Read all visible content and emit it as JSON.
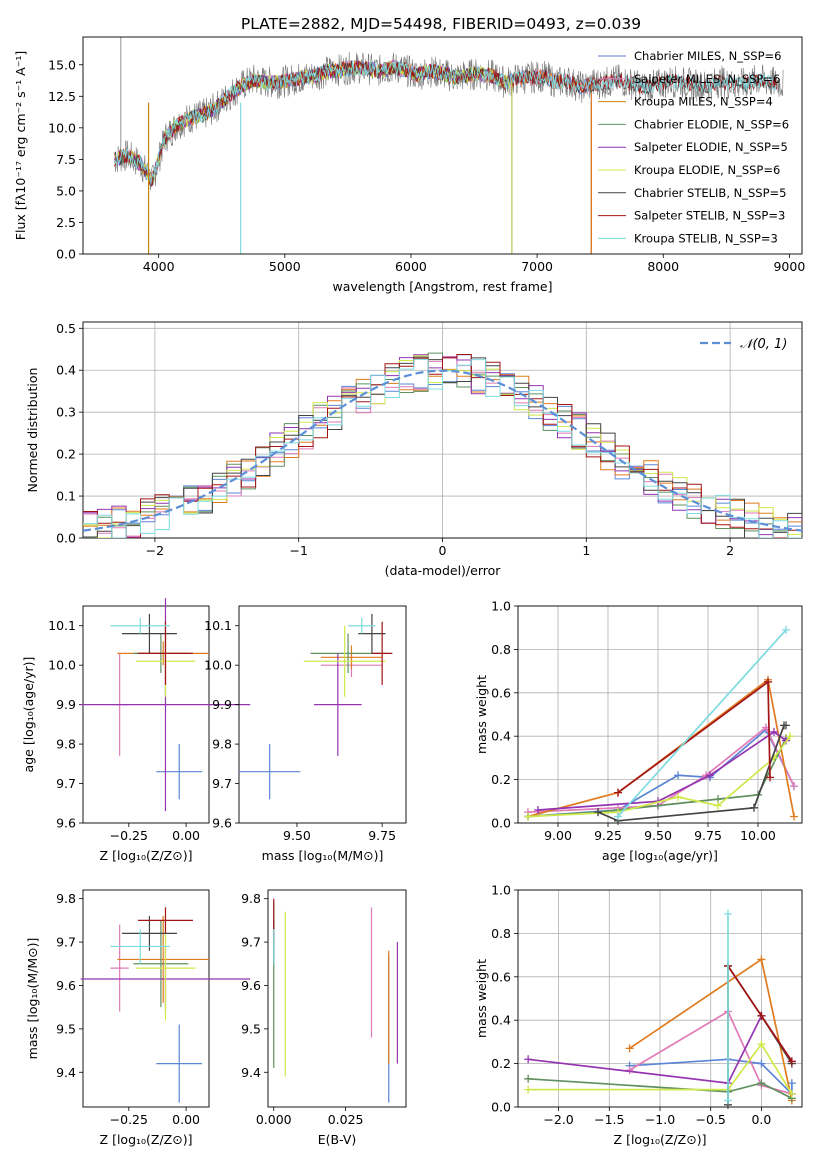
{
  "figure": {
    "title": "PLATE=2882, MJD=54498, FIBERID=0493, z=0.039"
  },
  "colors": [
    "#6a8fd6",
    "#e28ab9",
    "#c8860b",
    "#5f9e5f",
    "#9a3fb8",
    "#d7e14a",
    "#444444",
    "#a31515",
    "#7fdbe0"
  ],
  "panel_colors": {
    "tan_ciel": "#5b8fd8",
    "gris": "#b0b0b0",
    "normal_curve": "#5b8fd8",
    "ssp_lines": [
      "#5b86d6",
      "#e07ab8",
      "#e07b1f",
      "#5f8f5f",
      "#9434b0",
      "#cfe84a",
      "#444444",
      "#a31515",
      "#7fdbe0"
    ]
  },
  "chart_data": [
    {
      "id": "spectrum",
      "type": "line",
      "title": "PLATE=2882, MJD=54498, FIBERID=0493, z=0.039",
      "xlabel": "wavelength [Angstrom, rest frame]",
      "ylabel": "Flux [fλ10⁻¹⁷ erg cm⁻² s⁻¹ A⁻¹]",
      "xlim": [
        3400,
        9100
      ],
      "ylim": [
        0,
        17.2
      ],
      "xticks": [
        4000,
        5000,
        6000,
        7000,
        8000,
        9000
      ],
      "yticks": [
        0.0,
        2.5,
        5.0,
        7.5,
        10.0,
        12.5,
        15.0
      ],
      "ytick_labels": [
        "0.0",
        "2.5",
        "5.0",
        "7.5",
        "10.0",
        "12.5",
        "15.0"
      ],
      "legend": "top-right",
      "legend_entries": [
        "Chabrier MILES, N_SSP=6",
        "Salpeter MILES, N_SSP=6",
        "Kroupa MILES, N_SSP=4",
        "Chabrier ELODIE, N_SSP=6",
        "Salpeter ELODIE, N_SSP=5",
        "Kroupa ELODIE, N_SSP=6",
        "Chabrier STELIB, N_SSP=5",
        "Salpeter STELIB, N_SSP=3",
        "Kroupa STELIB, N_SSP=3"
      ],
      "legend_colors": [
        "#5b86d6",
        "#e07ab8",
        "#c8860b",
        "#5f8f5f",
        "#9434b0",
        "#cfe84a",
        "#444444",
        "#a31515",
        "#7fdbe0"
      ],
      "continuum": {
        "x": [
          3650,
          3750,
          3850,
          3950,
          4050,
          4150,
          4250,
          4350,
          4450,
          4550,
          4650,
          4750,
          4850,
          4950,
          5050,
          5150,
          5250,
          5350,
          5450,
          5550,
          5650,
          5750,
          5850,
          5950,
          6050,
          6150,
          6250,
          6350,
          6450,
          6550,
          6650,
          6750,
          6850,
          6950,
          7050,
          7150,
          7250,
          7350,
          7450,
          7550,
          7650,
          7750,
          7850,
          7950,
          8050,
          8150,
          8250,
          8350,
          8450,
          8550,
          8650,
          8750,
          8850,
          8950
        ],
        "y": [
          7.5,
          7.8,
          7.2,
          5.8,
          9.2,
          10.3,
          10.8,
          11.0,
          11.6,
          12.5,
          13.3,
          13.8,
          13.6,
          13.6,
          13.8,
          14.0,
          14.2,
          14.5,
          14.6,
          14.8,
          14.7,
          14.5,
          14.8,
          14.6,
          14.2,
          14.5,
          14.3,
          14.0,
          14.2,
          14.3,
          14.1,
          13.6,
          13.9,
          14.0,
          14.1,
          13.6,
          13.7,
          13.2,
          13.5,
          13.6,
          13.8,
          13.5,
          13.2,
          13.4,
          13.7,
          13.6,
          13.4,
          13.3,
          13.7,
          13.4,
          13.5,
          13.8,
          13.6,
          13.5
        ]
      },
      "series_cutoffs": [
        {
          "series": "Chabrier MILES, N_SSP=6",
          "end": 7430
        },
        {
          "series": "Salpeter MILES, N_SSP=6",
          "end": 7430
        },
        {
          "series": "Kroupa MILES, N_SSP=4",
          "end": 7430
        },
        {
          "series": "Chabrier ELODIE, N_SSP=6",
          "end": 6800
        },
        {
          "series": "Salpeter ELODIE, N_SSP=5",
          "end": 6800
        },
        {
          "series": "Kroupa ELODIE, N_SSP=6",
          "end": 6800
        },
        {
          "series": "Chabrier STELIB, N_SSP=5",
          "end": 8900
        },
        {
          "series": "Salpeter STELIB, N_SSP=3",
          "end": 8900
        },
        {
          "series": "Kroupa STELIB, N_SSP=3",
          "end": 8900
        }
      ]
    },
    {
      "id": "residual_hist",
      "type": "bar",
      "xlabel": "(data-model)/error",
      "ylabel": "Normed distribution",
      "xlim": [
        -2.5,
        2.5
      ],
      "ylim": [
        0,
        0.515
      ],
      "xticks": [
        -2,
        -1,
        0,
        1,
        2
      ],
      "xtick_labels": [
        "−2",
        "−1",
        "0",
        "1",
        "2"
      ],
      "yticks": [
        0.0,
        0.1,
        0.2,
        0.3,
        0.4,
        0.5
      ],
      "ytick_labels": [
        "0.0",
        "0.1",
        "0.2",
        "0.3",
        "0.4",
        "0.5"
      ],
      "legend": "top-right",
      "legend_entries": [
        "𝒩(0, 1)"
      ],
      "bin_width": 0.1,
      "grid": true,
      "gaussian": {
        "mean": 0,
        "sigma": 1
      }
    },
    {
      "id": "age_vs_Z",
      "type": "scatter",
      "xlabel": "Z [log₁₀(Z/Z⊙)]",
      "ylabel": "age  [log₁₀(age/yr)]",
      "xlim": [
        -0.45,
        0.1
      ],
      "ylim": [
        9.6,
        10.15
      ],
      "xticks": [
        -0.25,
        0.0
      ],
      "xtick_labels": [
        "−0.25",
        "0.00"
      ],
      "yticks": [
        9.6,
        9.7,
        9.8,
        9.9,
        10.0,
        10.1
      ],
      "ytick_labels": [
        "9.6",
        "9.7",
        "9.8",
        "9.9",
        "10.0",
        "10.1"
      ],
      "points": [
        {
          "x": -0.03,
          "y": 9.73,
          "xerr": 0.1,
          "yerr": 0.07
        },
        {
          "x": -0.29,
          "y": 9.9,
          "xerr": 0.04,
          "yerr": 0.13
        },
        {
          "x": -0.1,
          "y": 10.03,
          "xerr": 0.2,
          "yerr": 0.03
        },
        {
          "x": -0.11,
          "y": 10.03,
          "xerr": 0.12,
          "yerr": 0.05
        },
        {
          "x": -0.09,
          "y": 9.9,
          "xerr": 0.37,
          "yerr": 0.27
        },
        {
          "x": -0.09,
          "y": 10.01,
          "xerr": 0.13,
          "yerr": 0.09
        },
        {
          "x": -0.16,
          "y": 10.08,
          "xerr": 0.12,
          "yerr": 0.05
        },
        {
          "x": -0.09,
          "y": 10.03,
          "xerr": 0.12,
          "yerr": 0.08
        },
        {
          "x": -0.2,
          "y": 10.1,
          "xerr": 0.13,
          "yerr": 0.02
        }
      ]
    },
    {
      "id": "age_vs_mass",
      "type": "scatter",
      "xlabel": "mass [log₁₀(M/M⊙)]",
      "ylabel": "",
      "xlim": [
        9.33,
        9.82
      ],
      "ylim": [
        9.6,
        10.15
      ],
      "xticks": [
        9.5,
        9.75
      ],
      "xtick_labels": [
        "9.50",
        "9.75"
      ],
      "yticks": [
        9.6,
        9.7,
        9.8,
        9.9,
        10.0,
        10.1
      ],
      "ytick_labels": [
        "9.6",
        "9.7",
        "9.8",
        "9.9",
        "10.0",
        "10.1"
      ],
      "points": [
        {
          "x": 9.42,
          "y": 9.73,
          "xerr": 0.09,
          "yerr": 0.07
        },
        {
          "x": 9.66,
          "y": 10.0,
          "xerr": 0.09,
          "yerr": 0.03
        },
        {
          "x": 9.66,
          "y": 10.02,
          "xerr": 0.09,
          "yerr": 0.03
        },
        {
          "x": 9.65,
          "y": 10.03,
          "xerr": 0.11,
          "yerr": 0.05
        },
        {
          "x": 9.62,
          "y": 9.9,
          "xerr": 0.07,
          "yerr": 0.13
        },
        {
          "x": 9.64,
          "y": 10.01,
          "xerr": 0.12,
          "yerr": 0.09
        },
        {
          "x": 9.72,
          "y": 10.08,
          "xerr": 0.04,
          "yerr": 0.05
        },
        {
          "x": 9.75,
          "y": 10.03,
          "xerr": 0.03,
          "yerr": 0.08
        },
        {
          "x": 9.69,
          "y": 10.1,
          "xerr": 0.04,
          "yerr": 0.02
        }
      ]
    },
    {
      "id": "weight_vs_age",
      "type": "line",
      "xlabel": "age  [log₁₀(age/yr)]",
      "ylabel": "mass weight",
      "xlim": [
        8.8,
        10.22
      ],
      "ylim": [
        0,
        1.0
      ],
      "xticks": [
        9.0,
        9.25,
        9.5,
        9.75,
        10.0
      ],
      "xtick_labels": [
        "9.00",
        "9.25",
        "9.50",
        "9.75",
        "10.00"
      ],
      "yticks": [
        0.0,
        0.2,
        0.4,
        0.6,
        0.8,
        1.0
      ],
      "ytick_labels": [
        "0.0",
        "0.2",
        "0.4",
        "0.6",
        "0.8",
        "1.0"
      ],
      "grid": true,
      "series": [
        {
          "x": [
            8.85,
            9.3,
            9.6,
            9.76,
            10.04,
            10.18
          ],
          "y": [
            0.03,
            0.06,
            0.22,
            0.21,
            0.43,
            0.17
          ]
        },
        {
          "x": [
            8.85,
            9.3,
            9.5,
            9.74,
            10.04,
            10.18
          ],
          "y": [
            0.05,
            0.07,
            0.08,
            0.22,
            0.44,
            0.17
          ]
        },
        {
          "x": [
            8.85,
            9.3,
            10.05,
            10.18
          ],
          "y": [
            0.03,
            0.14,
            0.66,
            0.03
          ]
        },
        {
          "x": [
            8.85,
            9.2,
            9.5,
            9.8,
            10.0,
            10.14
          ],
          "y": [
            0.03,
            0.05,
            0.08,
            0.11,
            0.13,
            0.39
          ]
        },
        {
          "x": [
            8.9,
            9.5,
            9.76,
            10.08,
            10.14
          ],
          "y": [
            0.06,
            0.1,
            0.22,
            0.42,
            0.38
          ]
        },
        {
          "x": [
            8.85,
            9.3,
            9.6,
            9.8,
            10.08,
            10.16
          ],
          "y": [
            0.03,
            0.05,
            0.12,
            0.08,
            0.3,
            0.4
          ]
        },
        {
          "x": [
            9.2,
            9.3,
            9.98,
            10.13,
            10.14
          ],
          "y": [
            0.05,
            0.01,
            0.07,
            0.45,
            0.45
          ]
        },
        {
          "x": [
            9.3,
            10.05,
            10.06
          ],
          "y": [
            0.14,
            0.65,
            0.21
          ]
        },
        {
          "x": [
            9.3,
            10.14
          ],
          "y": [
            0.03,
            0.89
          ]
        }
      ]
    },
    {
      "id": "mass_vs_Z",
      "type": "scatter",
      "xlabel": "Z [log₁₀(Z/Z⊙)]",
      "ylabel": "mass [log₁₀(M/M⊙)]",
      "xlim": [
        -0.45,
        0.1
      ],
      "ylim": [
        9.32,
        9.82
      ],
      "xticks": [
        -0.25,
        0.0
      ],
      "xtick_labels": [
        "−0.25",
        "0.00"
      ],
      "yticks": [
        9.4,
        9.5,
        9.6,
        9.7,
        9.8
      ],
      "ytick_labels": [
        "9.4",
        "9.5",
        "9.6",
        "9.7",
        "9.8"
      ],
      "points": [
        {
          "x": -0.03,
          "y": 9.42,
          "xerr": 0.1,
          "yerr": 0.09
        },
        {
          "x": -0.29,
          "y": 9.64,
          "xerr": 0.04,
          "yerr": 0.1
        },
        {
          "x": -0.1,
          "y": 9.66,
          "xerr": 0.2,
          "yerr": 0.1
        },
        {
          "x": -0.11,
          "y": 9.65,
          "xerr": 0.12,
          "yerr": 0.1
        },
        {
          "x": -0.09,
          "y": 9.615,
          "xerr": 0.37,
          "yerr": 0.07
        },
        {
          "x": -0.09,
          "y": 9.64,
          "xerr": 0.13,
          "yerr": 0.12
        },
        {
          "x": -0.16,
          "y": 9.72,
          "xerr": 0.12,
          "yerr": 0.04
        },
        {
          "x": -0.09,
          "y": 9.75,
          "xerr": 0.12,
          "yerr": 0.03
        },
        {
          "x": -0.2,
          "y": 9.69,
          "xerr": 0.13,
          "yerr": 0.04
        }
      ]
    },
    {
      "id": "mass_vs_ebv",
      "type": "scatter",
      "xlabel": "E(B-V)",
      "ylabel": "",
      "xlim": [
        -0.002,
        0.046
      ],
      "ylim": [
        9.32,
        9.82
      ],
      "xticks": [
        0.0,
        0.025
      ],
      "xtick_labels": [
        "0.000",
        "0.025"
      ],
      "yticks": [
        9.4,
        9.5,
        9.6,
        9.7,
        9.8
      ],
      "ytick_labels": [
        "9.4",
        "9.5",
        "9.6",
        "9.7",
        "9.8"
      ],
      "points": [
        {
          "x": 0.04,
          "y": 9.5,
          "yerr": 0.17
        },
        {
          "x": 0.034,
          "y": 9.63,
          "yerr": 0.15
        },
        {
          "x": 0.04,
          "y": 9.55,
          "yerr": 0.13
        },
        {
          "x": 0.0,
          "y": 9.6,
          "yerr": 0.19
        },
        {
          "x": 0.043,
          "y": 9.56,
          "yerr": 0.14
        },
        {
          "x": 0.004,
          "y": 9.58,
          "yerr": 0.19
        },
        {
          "x": 0.0,
          "y": 9.7,
          "yerr": 0.05
        },
        {
          "x": 0.0,
          "y": 9.75,
          "yerr": 0.05
        },
        {
          "x": 0.0,
          "y": 9.69,
          "yerr": 0.04
        }
      ]
    },
    {
      "id": "weight_vs_Z",
      "type": "line",
      "xlabel": "Z [log₁₀(Z/Z⊙)]",
      "ylabel": "mass weight",
      "xlim": [
        -2.4,
        0.4
      ],
      "ylim": [
        0,
        1.0
      ],
      "xticks": [
        -2.0,
        -1.5,
        -1.0,
        -0.5,
        0.0
      ],
      "xtick_labels": [
        "−2.0",
        "−1.5",
        "−1.0",
        "−0.5",
        "0.0"
      ],
      "yticks": [
        0.0,
        0.2,
        0.4,
        0.6,
        0.8,
        1.0
      ],
      "ytick_labels": [
        "0.0",
        "0.2",
        "0.4",
        "0.6",
        "0.8",
        "1.0"
      ],
      "grid": true,
      "series": [
        {
          "x": [
            -1.3,
            -0.33,
            0.0,
            0.3,
            0.3
          ],
          "y": [
            0.19,
            0.22,
            0.2,
            0.06,
            0.11
          ]
        },
        {
          "x": [
            -1.3,
            -0.33,
            0.0,
            0.3
          ],
          "y": [
            0.17,
            0.44,
            0.1,
            0.06
          ]
        },
        {
          "x": [
            -1.3,
            0.0,
            0.3
          ],
          "y": [
            0.27,
            0.68,
            0.03
          ]
        },
        {
          "x": [
            -2.3,
            -0.33,
            0.0,
            0.3
          ],
          "y": [
            0.13,
            0.07,
            0.11,
            0.04
          ]
        },
        {
          "x": [
            -2.3,
            -0.33,
            0.0,
            0.3
          ],
          "y": [
            0.22,
            0.11,
            0.42,
            0.21
          ]
        },
        {
          "x": [
            -2.3,
            -0.33,
            0.0,
            0.3
          ],
          "y": [
            0.08,
            0.08,
            0.29,
            0.06
          ]
        },
        {
          "x": [
            -0.33,
            -0.33,
            0.0,
            0.3
          ],
          "y": [
            0.01,
            0.65,
            0.42,
            0.2
          ]
        },
        {
          "x": [
            -0.33,
            0.0,
            0.3
          ],
          "y": [
            0.65,
            0.42,
            0.21
          ]
        },
        {
          "x": [
            -0.33,
            -0.33
          ],
          "y": [
            0.03,
            0.89
          ]
        }
      ]
    }
  ]
}
